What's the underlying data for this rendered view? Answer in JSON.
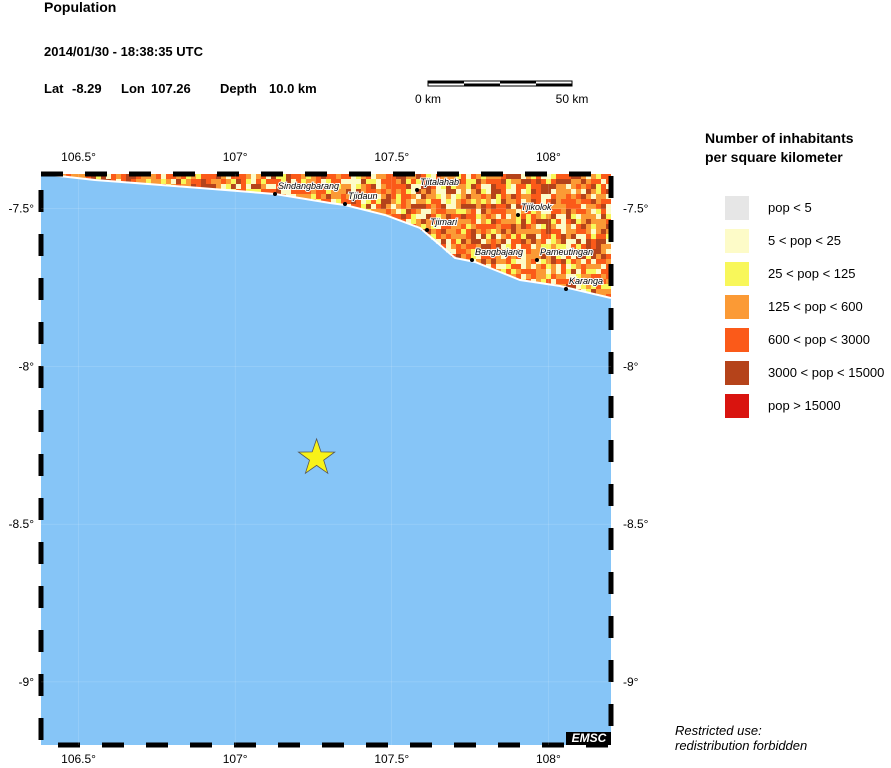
{
  "header": {
    "title": "Population",
    "datetime": "2014/01/30 - 18:38:35 UTC"
  },
  "event": {
    "lat_label": "Lat",
    "lat": -8.29,
    "lon_label": "Lon",
    "lon": 107.26,
    "depth_label": "Depth",
    "depth": "10.0 km"
  },
  "scale_bar": {
    "start": "0 km",
    "end": "50 km"
  },
  "map": {
    "xlim": [
      106.38,
      108.2
    ],
    "ylim": [
      -9.2,
      -7.39
    ],
    "xticks": [
      {
        "value": 106.5,
        "label": "106.5°"
      },
      {
        "value": 107,
        "label": "107°"
      },
      {
        "value": 107.5,
        "label": "107.5°"
      },
      {
        "value": 108,
        "label": "108°"
      }
    ],
    "yticks": [
      {
        "value": -7.5,
        "label": "-7.5°"
      },
      {
        "value": -8,
        "label": "-8°"
      },
      {
        "value": -8.5,
        "label": "-8.5°"
      },
      {
        "value": -9,
        "label": "-9°"
      }
    ],
    "cities": [
      "Sindangbarang",
      "Tjidaun",
      "Tjitalahab",
      "Tjimari",
      "Tjikolok",
      "Bangbajang",
      "Pameutingan",
      "Karanga"
    ],
    "badge": "EMSC"
  },
  "legend": {
    "title": [
      "Number of inhabitants",
      "per square kilometer"
    ],
    "items": [
      {
        "label": "pop < 5",
        "color": "#e6e6e6"
      },
      {
        "label": "5 < pop < 25",
        "color": "#fdfbc8"
      },
      {
        "label": "25 < pop < 125",
        "color": "#f8f75a"
      },
      {
        "label": "125 < pop < 600",
        "color": "#fb9a35"
      },
      {
        "label": "600 < pop < 3000",
        "color": "#fb5a19"
      },
      {
        "label": "3000 < pop < 15000",
        "color": "#b5431a"
      },
      {
        "label": "pop > 15000",
        "color": "#d9140f"
      }
    ]
  },
  "footer": [
    "Restricted use:",
    "redistribution forbidden"
  ]
}
